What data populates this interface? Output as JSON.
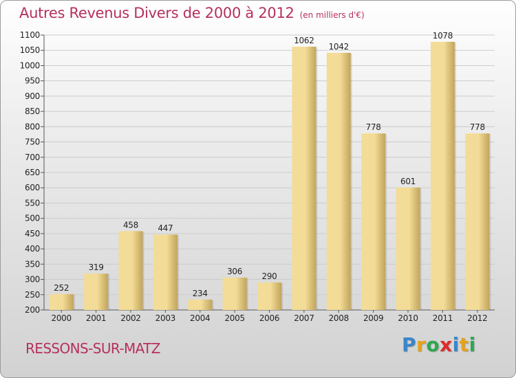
{
  "header": {
    "title": "Autres Revenus Divers de 2000 à 2012",
    "unit": "(en milliers d'€)"
  },
  "footer": {
    "city": "RESSONS-SUR-MATZ",
    "brand_letters": [
      {
        "char": "P",
        "color": "#3a86c8"
      },
      {
        "char": "r",
        "color": "#e6a219"
      },
      {
        "char": "o",
        "color": "#2fa84f"
      },
      {
        "char": "x",
        "color": "#e02a2a"
      },
      {
        "char": "i",
        "color": "#3a86c8"
      },
      {
        "char": "t",
        "color": "#e6a219"
      },
      {
        "char": "i",
        "color": "#2fa84f"
      }
    ]
  },
  "colors": {
    "title": "#b5305e",
    "bar_light": "#f3dc97",
    "bar_dark": "#c2a55a",
    "grid": "#cccccc"
  },
  "chart_data": {
    "type": "bar",
    "title": "Autres Revenus Divers de 2000 à 2012",
    "subtitle": "(en milliers d'€)",
    "categories": [
      "2000",
      "2001",
      "2002",
      "2003",
      "2004",
      "2005",
      "2006",
      "2007",
      "2008",
      "2009",
      "2010",
      "2011",
      "2012"
    ],
    "values": [
      252,
      319,
      458,
      447,
      234,
      306,
      290,
      1062,
      1042,
      778,
      601,
      1078,
      778
    ],
    "ylim": [
      200,
      1100
    ],
    "yticks": [
      200,
      250,
      300,
      350,
      400,
      450,
      500,
      550,
      600,
      650,
      700,
      750,
      800,
      850,
      900,
      950,
      1000,
      1050,
      1100
    ],
    "grid": true,
    "legend": "none"
  }
}
